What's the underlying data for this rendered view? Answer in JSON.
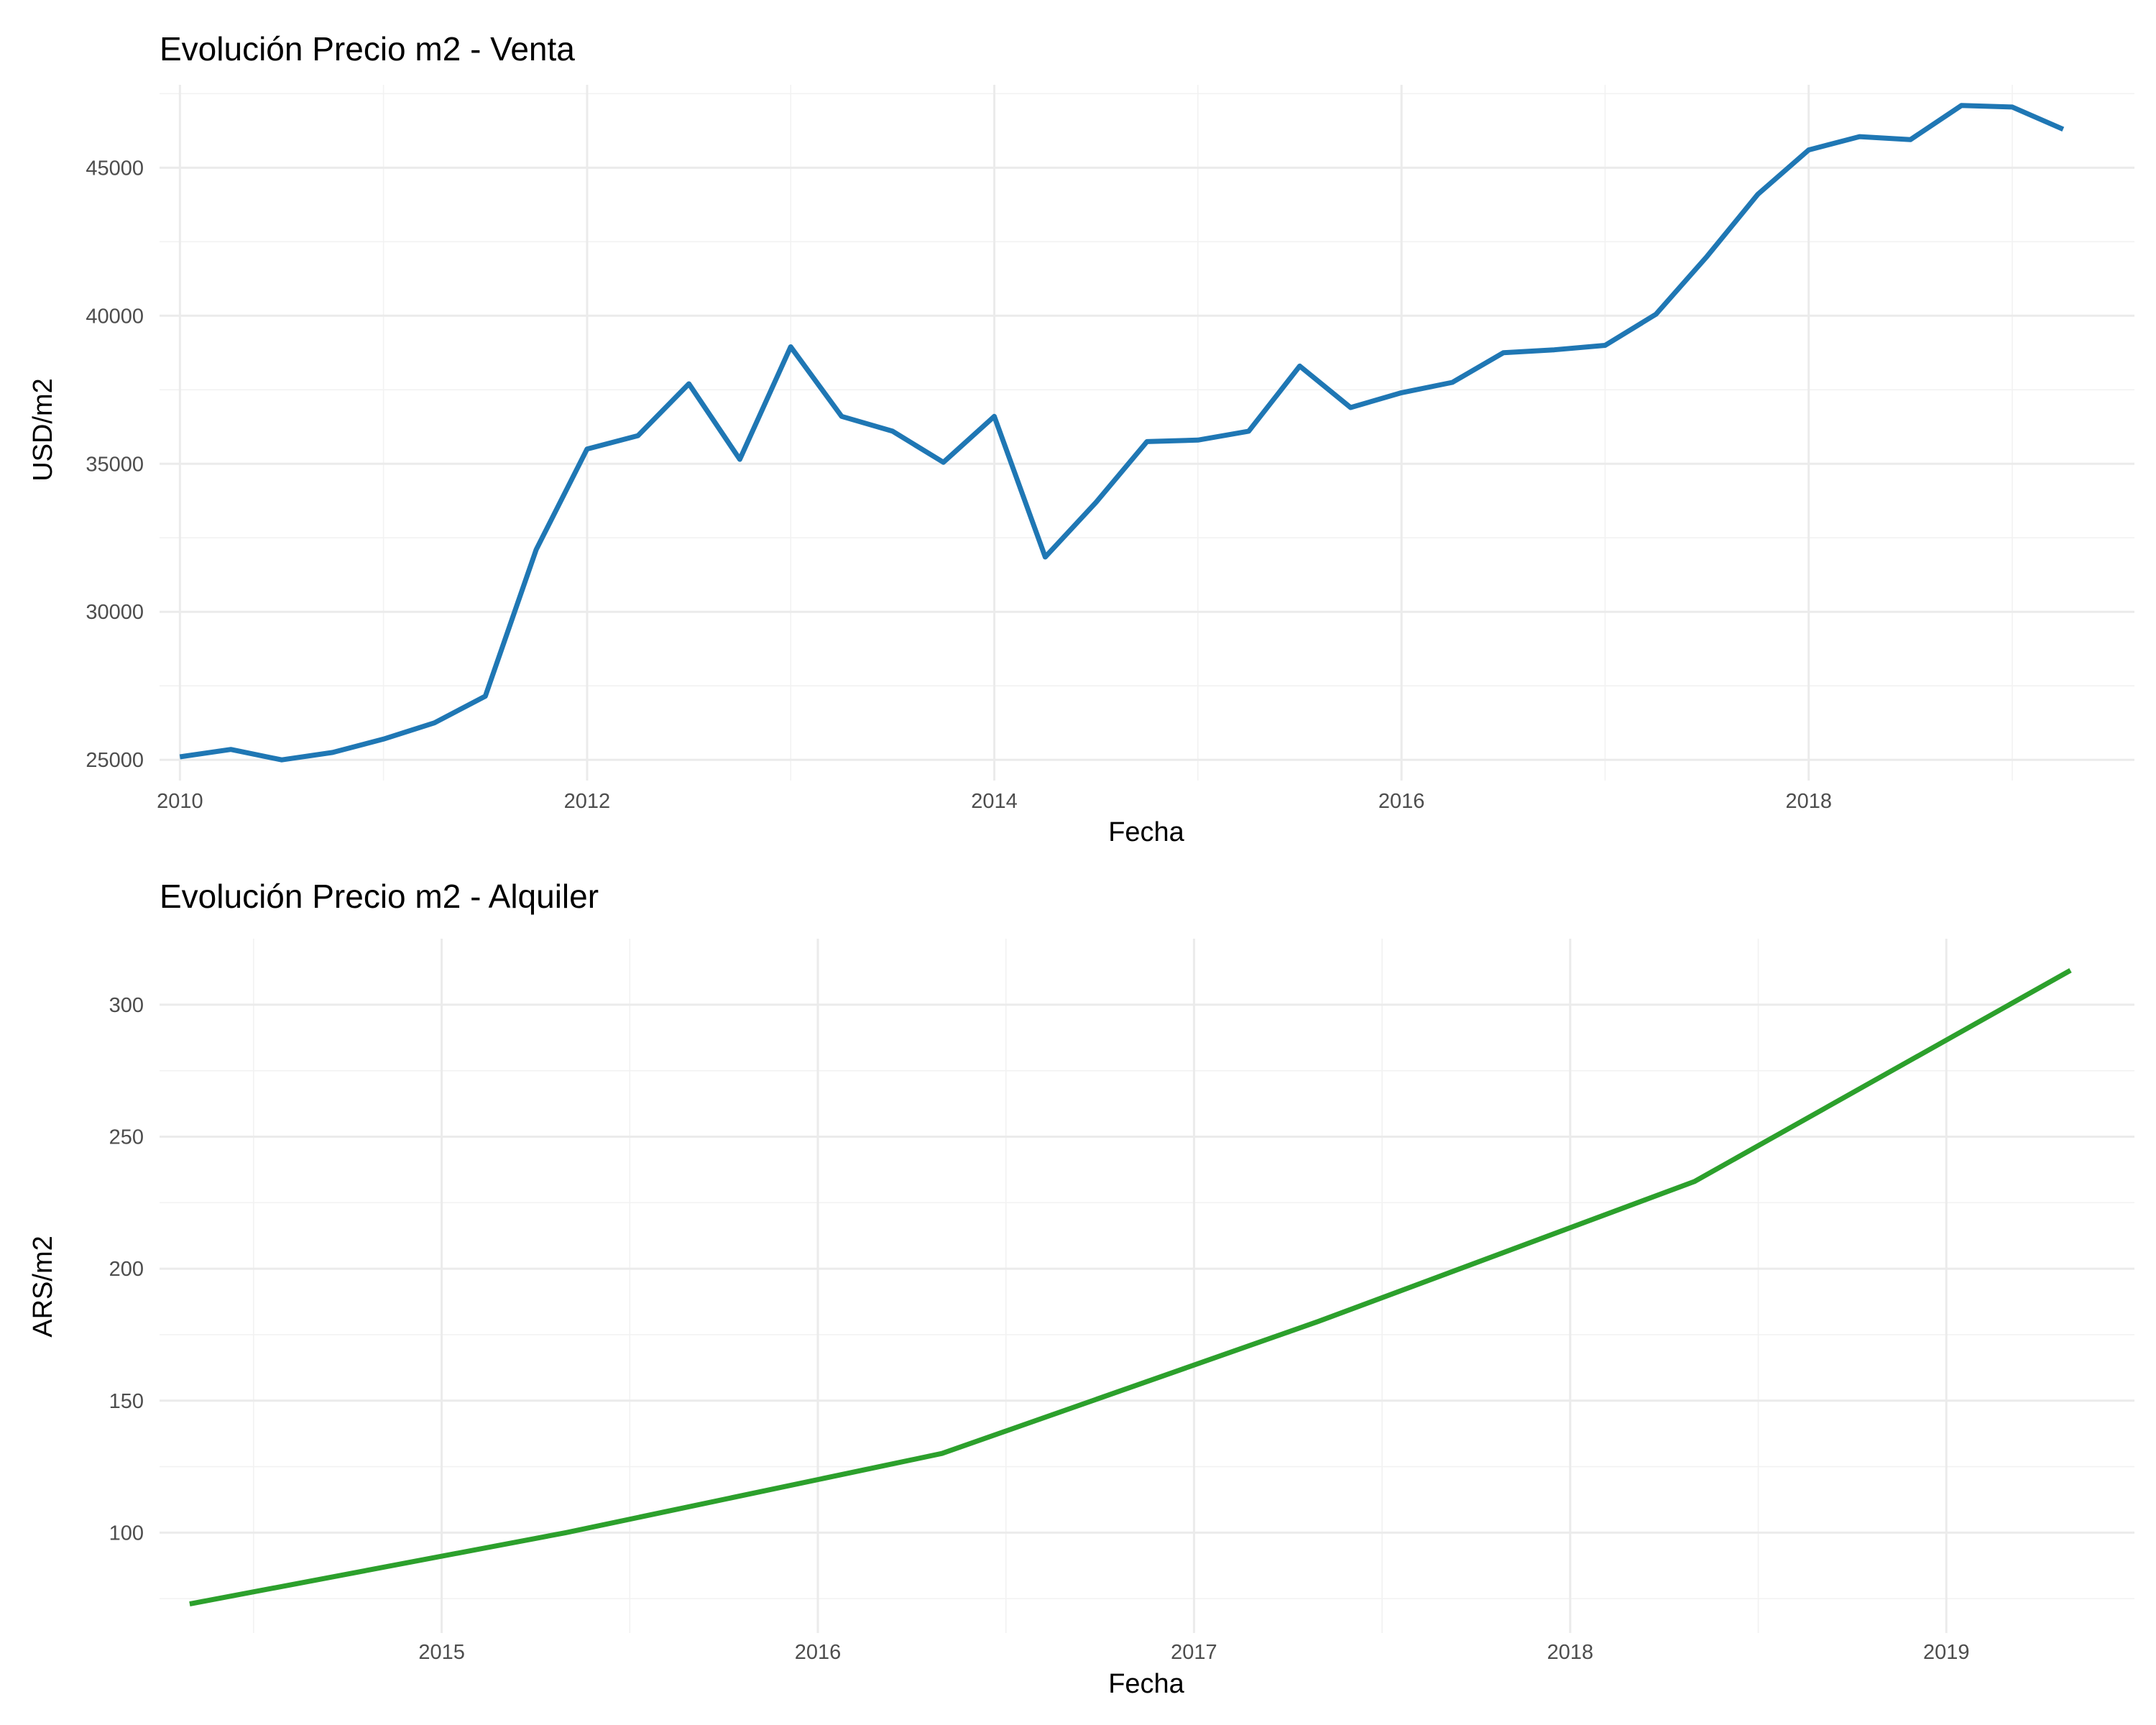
{
  "chart_data": [
    {
      "type": "line",
      "title": "Evolución Precio m2 - Venta",
      "xlabel": "Fecha",
      "ylabel": "USD/m2",
      "xlim": [
        2009.9,
        2019.6
      ],
      "ylim": [
        24300,
        47800
      ],
      "x_ticks": [
        "2010",
        "2012",
        "2014",
        "2016",
        "2018"
      ],
      "y_ticks": [
        "25000",
        "30000",
        "35000",
        "40000",
        "45000"
      ],
      "grid": true,
      "color": "#1f77b4",
      "series": [
        {
          "x": [
            2010.0,
            2010.25,
            2010.5,
            2010.75,
            2011.0,
            2011.25,
            2011.5,
            2011.75,
            2012.0,
            2012.25,
            2012.5,
            2012.75,
            2013.0,
            2013.25,
            2013.5,
            2013.75,
            2014.0,
            2014.25,
            2014.5,
            2014.75,
            2015.0,
            2015.25,
            2015.5,
            2015.75,
            2016.0,
            2016.25,
            2016.5,
            2016.75,
            2017.0,
            2017.25,
            2017.5,
            2017.75,
            2018.0,
            2018.25,
            2018.5,
            2018.75,
            2019.0,
            2019.25
          ],
          "values": [
            25100,
            25350,
            25000,
            25250,
            25700,
            26250,
            27150,
            32100,
            35500,
            35950,
            37700,
            35150,
            38950,
            36600,
            36100,
            35050,
            36600,
            31850,
            33700,
            35750,
            35800,
            36100,
            38300,
            36900,
            37400,
            37750,
            38750,
            38850,
            39000,
            40050,
            42000,
            44100,
            45600,
            46050,
            45950,
            47100,
            47050,
            46300
          ]
        }
      ]
    },
    {
      "type": "line",
      "title": "Evolución Precio m2 - Alquiler",
      "xlabel": "Fecha",
      "ylabel": "ARS/m2",
      "xlim": [
        2014.25,
        2019.5
      ],
      "ylim": [
        62,
        325
      ],
      "x_ticks": [
        "2015",
        "2016",
        "2017",
        "2018",
        "2019"
      ],
      "y_ticks": [
        "100",
        "150",
        "200",
        "250",
        "300"
      ],
      "grid": true,
      "color": "#2ca02c",
      "series": [
        {
          "x": [
            2014.33,
            2015.33,
            2016.33,
            2017.33,
            2018.33,
            2019.33
          ],
          "values": [
            73,
            100,
            130,
            180,
            233,
            313
          ]
        }
      ]
    }
  ]
}
